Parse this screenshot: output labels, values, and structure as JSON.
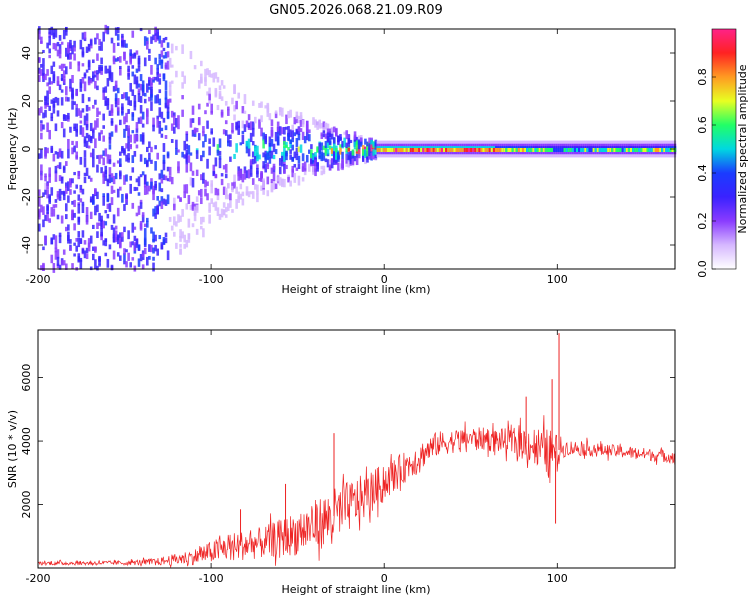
{
  "figure_title": "GN05.2026.068.21.09.R09",
  "colors": {
    "snr_line": "#ee2222",
    "axis": "#000000",
    "colormap": [
      "#ffffff",
      "#d6b8ff",
      "#8a3cff",
      "#3a22ff",
      "#1a3cff",
      "#00d8e0",
      "#22ff66",
      "#e8ff22",
      "#ff9a22",
      "#ff2222",
      "#ff2288"
    ]
  },
  "chart_data": [
    {
      "type": "heatmap",
      "title": "GN05.2026.068.21.09.R09",
      "xlabel": "Height of straight line (km)",
      "ylabel": "Frequency (Hz)",
      "xlim": [
        -200,
        168
      ],
      "ylim": [
        -50,
        50
      ],
      "x_ticks": [
        -200,
        -100,
        0,
        100
      ],
      "y_ticks": [
        -40,
        -20,
        0,
        20,
        40
      ],
      "colorbar": {
        "label": "Normalized spectral amplitude",
        "range": [
          0,
          1
        ],
        "ticks": [
          "0.0",
          "0.2",
          "0.4",
          "0.6",
          "0.8"
        ]
      },
      "bandwidth_hz": [
        {
          "x": -200,
          "half_width": 50
        },
        {
          "x": -130,
          "half_width": 50
        },
        {
          "x": -100,
          "half_width": 32
        },
        {
          "x": -80,
          "half_width": 22
        },
        {
          "x": -50,
          "half_width": 14
        },
        {
          "x": -20,
          "half_width": 6
        },
        {
          "x": 0,
          "half_width": 3
        },
        {
          "x": 168,
          "half_width": 3
        }
      ],
      "peak_amplitude": [
        {
          "x": -200,
          "amplitude": 0.15
        },
        {
          "x": -125,
          "amplitude": 0.2
        },
        {
          "x": -90,
          "amplitude": 0.32
        },
        {
          "x": -40,
          "amplitude": 0.45
        },
        {
          "x": -5,
          "amplitude": 0.85
        },
        {
          "x": 60,
          "amplitude": 0.85
        },
        {
          "x": 100,
          "amplitude": 0.5
        },
        {
          "x": 168,
          "amplitude": 0.65
        }
      ]
    },
    {
      "type": "line",
      "xlabel": "Height of straight line (km)",
      "ylabel": "SNR (10 * v/v)",
      "xlim": [
        -200,
        168
      ],
      "ylim": [
        0,
        7500
      ],
      "x_ticks": [
        -200,
        -100,
        0,
        100
      ],
      "y_ticks": [
        2000,
        4000,
        6000
      ],
      "series": [
        {
          "name": "SNR",
          "envelope": [
            {
              "x": -200,
              "mean": 150,
              "noise": 60
            },
            {
              "x": -150,
              "mean": 160,
              "noise": 70
            },
            {
              "x": -130,
              "mean": 200,
              "noise": 120
            },
            {
              "x": -110,
              "mean": 350,
              "noise": 250
            },
            {
              "x": -90,
              "mean": 650,
              "noise": 450
            },
            {
              "x": -70,
              "mean": 800,
              "noise": 500
            },
            {
              "x": -50,
              "mean": 1100,
              "noise": 700
            },
            {
              "x": -30,
              "mean": 1600,
              "noise": 900
            },
            {
              "x": -10,
              "mean": 2300,
              "noise": 700
            },
            {
              "x": 10,
              "mean": 3100,
              "noise": 500
            },
            {
              "x": 30,
              "mean": 3900,
              "noise": 400
            },
            {
              "x": 50,
              "mean": 4100,
              "noise": 350
            },
            {
              "x": 70,
              "mean": 4000,
              "noise": 400
            },
            {
              "x": 85,
              "mean": 3900,
              "noise": 600
            },
            {
              "x": 95,
              "mean": 3600,
              "noise": 800
            },
            {
              "x": 105,
              "mean": 3800,
              "noise": 250
            },
            {
              "x": 130,
              "mean": 3700,
              "noise": 200
            },
            {
              "x": 168,
              "mean": 3500,
              "noise": 200
            }
          ],
          "spikes": [
            {
              "x": -83,
              "value": 1850
            },
            {
              "x": -57,
              "value": 2650
            },
            {
              "x": -29,
              "value": 4250
            },
            {
              "x": 82,
              "value": 5400
            },
            {
              "x": 97,
              "value": 5950
            },
            {
              "x": 99,
              "value": 1400
            },
            {
              "x": 101,
              "value": 7400
            }
          ]
        }
      ]
    }
  ]
}
